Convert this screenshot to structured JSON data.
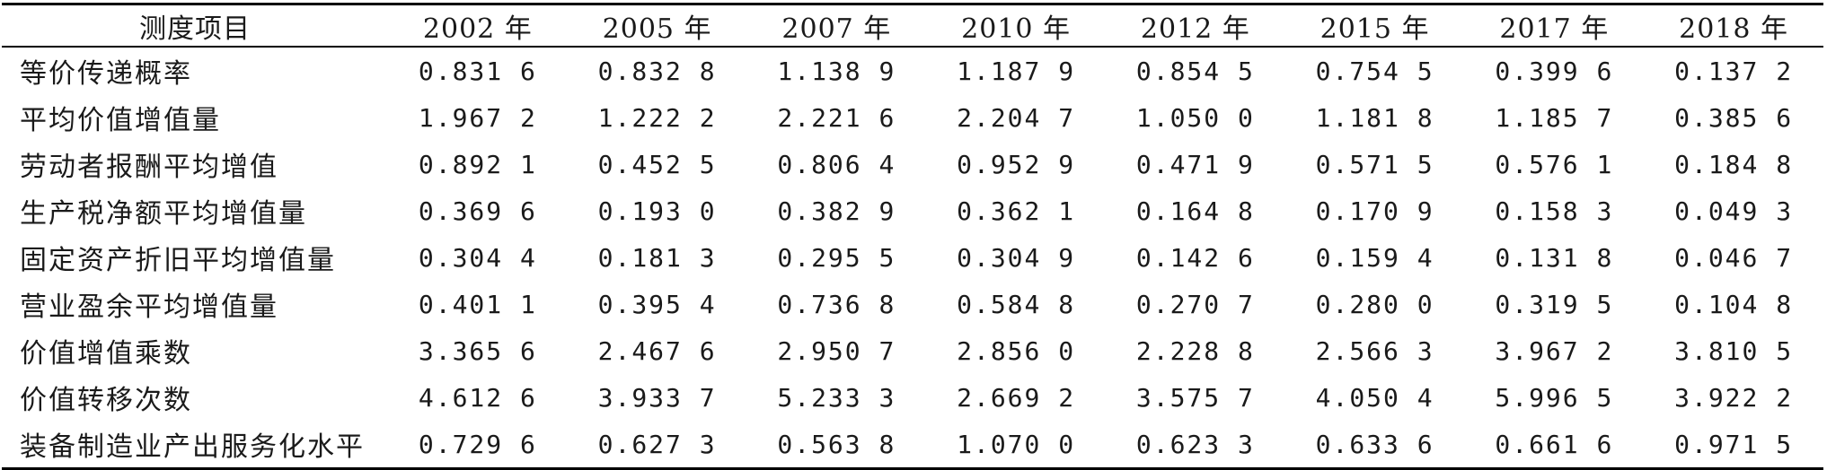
{
  "table": {
    "columns": [
      "测度项目",
      "2002 年",
      "2005 年",
      "2007 年",
      "2010 年",
      "2012 年",
      "2015 年",
      "2017 年",
      "2018 年"
    ],
    "rows": [
      {
        "label": "等价传递概率",
        "values": [
          "0.831 6",
          "0.832 8",
          "1.138 9",
          "1.187 9",
          "0.854 5",
          "0.754 5",
          "0.399 6",
          "0.137 2"
        ]
      },
      {
        "label": "平均价值增值量",
        "values": [
          "1.967 2",
          "1.222 2",
          "2.221 6",
          "2.204 7",
          "1.050 0",
          "1.181 8",
          "1.185 7",
          "0.385 6"
        ]
      },
      {
        "label": "劳动者报酬平均增值",
        "values": [
          "0.892 1",
          "0.452 5",
          "0.806 4",
          "0.952 9",
          "0.471 9",
          "0.571 5",
          "0.576 1",
          "0.184 8"
        ]
      },
      {
        "label": "生产税净额平均增值量",
        "values": [
          "0.369 6",
          "0.193 0",
          "0.382 9",
          "0.362 1",
          "0.164 8",
          "0.170 9",
          "0.158 3",
          "0.049 3"
        ]
      },
      {
        "label": "固定资产折旧平均增值量",
        "values": [
          "0.304 4",
          "0.181 3",
          "0.295 5",
          "0.304 9",
          "0.142 6",
          "0.159 4",
          "0.131 8",
          "0.046 7"
        ]
      },
      {
        "label": "营业盈余平均增值量",
        "values": [
          "0.401 1",
          "0.395 4",
          "0.736 8",
          "0.584 8",
          "0.270 7",
          "0.280 0",
          "0.319 5",
          "0.104 8"
        ]
      },
      {
        "label": "价值增值乘数",
        "values": [
          "3.365 6",
          "2.467 6",
          "2.950 7",
          "2.856 0",
          "2.228 8",
          "2.566 3",
          "3.967 2",
          "3.810 5"
        ]
      },
      {
        "label": "价值转移次数",
        "values": [
          "4.612 6",
          "3.933 7",
          "5.233 3",
          "2.669 2",
          "3.575 7",
          "4.050 4",
          "5.996 5",
          "3.922 2"
        ]
      },
      {
        "label": "装备制造业产出服务化水平",
        "values": [
          "0.729 6",
          "0.627 3",
          "0.563 8",
          "1.070 0",
          "0.623 3",
          "0.633 6",
          "0.661 6",
          "0.971 5"
        ]
      }
    ]
  }
}
